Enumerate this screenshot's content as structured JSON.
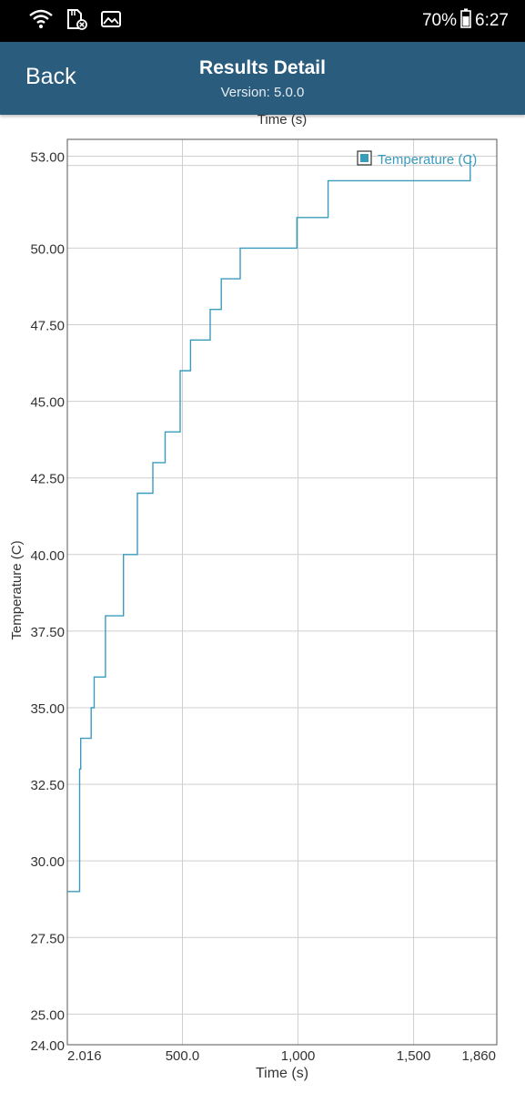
{
  "status_bar": {
    "battery_percent": "70%",
    "time": "6:27",
    "icons": [
      "wifi-icon",
      "sd-card-icon",
      "image-icon",
      "battery-icon"
    ]
  },
  "header": {
    "back_label": "Back",
    "title": "Results Detail",
    "subtitle": "Version: 5.0.0",
    "background_color": "#2a5c7e"
  },
  "chart_data": {
    "type": "line",
    "top_xlabel": "Time (s)",
    "xlabel": "Time (s)",
    "ylabel": "Temperature (C)",
    "xlim": [
      2.016,
      1860
    ],
    "ylim": [
      24,
      53
    ],
    "legend": "top-right",
    "grid": true,
    "x_ticks": [
      {
        "value": 2.016,
        "label": "2.016"
      },
      {
        "value": 500,
        "label": "500.0"
      },
      {
        "value": 1000,
        "label": "1,000"
      },
      {
        "value": 1500,
        "label": "1,500"
      },
      {
        "value": 1860,
        "label": "1,860"
      }
    ],
    "y_ticks": [
      {
        "value": 24,
        "label": "24.00"
      },
      {
        "value": 25,
        "label": "25.00"
      },
      {
        "value": 27.5,
        "label": "27.50"
      },
      {
        "value": 30,
        "label": "30.00"
      },
      {
        "value": 32.5,
        "label": "32.50"
      },
      {
        "value": 35,
        "label": "35.00"
      },
      {
        "value": 37.5,
        "label": "37.50"
      },
      {
        "value": 40,
        "label": "40.00"
      },
      {
        "value": 42.5,
        "label": "42.50"
      },
      {
        "value": 45,
        "label": "45.00"
      },
      {
        "value": 47.5,
        "label": "47.50"
      },
      {
        "value": 50,
        "label": "50.00"
      },
      {
        "value": 53,
        "label": "53.00"
      }
    ],
    "series": [
      {
        "name": "Temperature (C)",
        "color": "#3a9cbd",
        "points": [
          [
            2.016,
            29
          ],
          [
            55,
            29
          ],
          [
            55,
            33
          ],
          [
            60,
            33
          ],
          [
            60,
            34
          ],
          [
            105,
            34
          ],
          [
            105,
            35
          ],
          [
            118,
            35
          ],
          [
            118,
            36
          ],
          [
            167,
            36
          ],
          [
            167,
            38
          ],
          [
            245,
            38
          ],
          [
            245,
            40
          ],
          [
            305,
            40
          ],
          [
            305,
            42
          ],
          [
            372,
            42
          ],
          [
            372,
            43
          ],
          [
            425,
            43
          ],
          [
            425,
            44
          ],
          [
            490,
            44
          ],
          [
            490,
            46
          ],
          [
            535,
            46
          ],
          [
            535,
            47
          ],
          [
            620,
            47
          ],
          [
            620,
            48
          ],
          [
            668,
            48
          ],
          [
            668,
            49
          ],
          [
            750,
            49
          ],
          [
            750,
            50
          ],
          [
            995,
            50
          ],
          [
            995,
            51
          ],
          [
            1130,
            51
          ],
          [
            1130,
            52.2
          ],
          [
            1745,
            52.2
          ],
          [
            1745,
            53
          ]
        ]
      }
    ]
  }
}
